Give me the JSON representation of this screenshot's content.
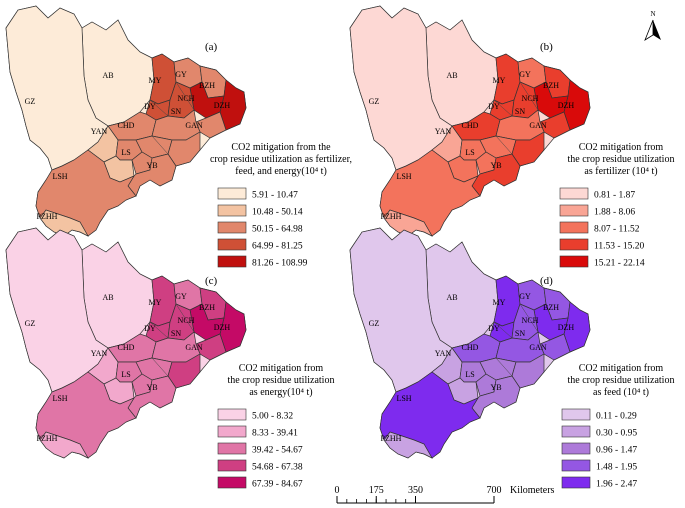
{
  "compass": {
    "label": "N",
    "icon": "north-arrow-icon"
  },
  "city_codes": [
    "AB",
    "GZ",
    "GY",
    "BZH",
    "MY",
    "NCH",
    "DZH",
    "DY",
    "CHD",
    "SN",
    "GAN",
    "YAN",
    "LS",
    "YB",
    "LSH",
    "PZHH"
  ],
  "panels": [
    {
      "tag": "(a)",
      "legend_title": [
        "CO2 mitigation from the",
        "crop residue utilization as fertilizer,",
        "feed, and energy(10⁴ t)"
      ],
      "classes": [
        {
          "label": "5.91 - 10.47",
          "color": "#fdebd8"
        },
        {
          "label": "10.48 - 50.14",
          "color": "#f3c3a2"
        },
        {
          "label": "50.15 - 64.98",
          "color": "#e1876c"
        },
        {
          "label": "64.99 - 81.25",
          "color": "#cf5036"
        },
        {
          "label": "81.26 - 108.99",
          "color": "#c0100e"
        }
      ]
    },
    {
      "tag": "(b)",
      "legend_title": [
        "CO2 mitigation from",
        "the crop residue utilization",
        "as fertilizer (10⁴ t)"
      ],
      "classes": [
        {
          "label": "0.81 - 1.87",
          "color": "#fdd8d4"
        },
        {
          "label": "1.88 - 8.06",
          "color": "#f9a595"
        },
        {
          "label": "8.07 - 11.52",
          "color": "#f3735c"
        },
        {
          "label": "11.53 - 15.20",
          "color": "#e93e2d"
        },
        {
          "label": "15.21 - 22.14",
          "color": "#d90a0a"
        }
      ]
    },
    {
      "tag": "(c)",
      "legend_title": [
        "CO2 mitigation from",
        "the crop residue utilization",
        "as energy(10⁴ t)"
      ],
      "classes": [
        {
          "label": "5.00 - 8.32",
          "color": "#fad2e6"
        },
        {
          "label": "8.33 - 39.41",
          "color": "#f2a8cc"
        },
        {
          "label": "39.42 - 54.67",
          "color": "#e075a6"
        },
        {
          "label": "54.68 - 67.38",
          "color": "#cf3f82"
        },
        {
          "label": "67.39 - 84.67",
          "color": "#c40a66"
        }
      ]
    },
    {
      "tag": "(d)",
      "legend_title": [
        "CO2 mitigation from",
        "the crop residue utilization",
        "as feed (10⁴ t)"
      ],
      "classes": [
        {
          "label": "0.11 - 0.29",
          "color": "#e0c7ec"
        },
        {
          "label": "0.30 - 0.95",
          "color": "#c8a2e2"
        },
        {
          "label": "0.96 - 1.47",
          "color": "#ad7ad9"
        },
        {
          "label": "1.48 - 1.95",
          "color": "#9457e3"
        },
        {
          "label": "1.96 - 2.47",
          "color": "#7e2bee"
        }
      ]
    }
  ],
  "scale_bar": {
    "ticks": [
      "0",
      "175",
      "350",
      "700"
    ],
    "unit": "Kilometers"
  }
}
